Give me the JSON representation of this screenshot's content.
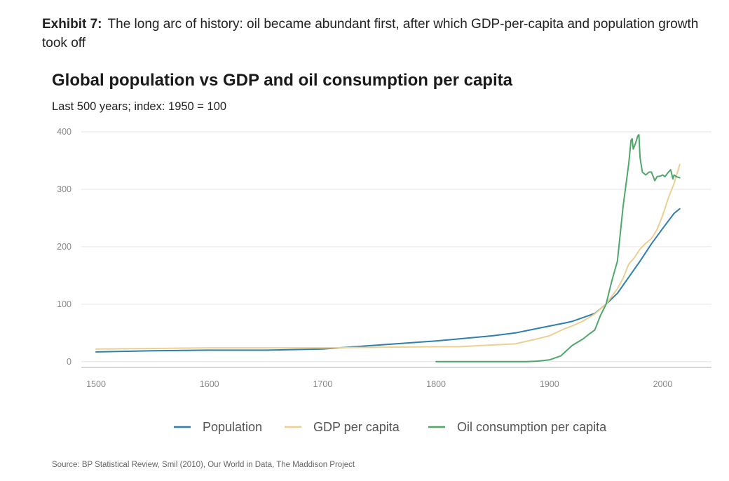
{
  "exhibit": {
    "label": "Exhibit 7:",
    "caption": "The long arc of history: oil became abundant first, after which GDP-per-capita and population growth took off"
  },
  "source": "Source: BP Statistical Review, Smil (2010), Our World in Data, The Maddison Project",
  "colors": {
    "population": "#2e7fae",
    "gdp": "#ecd092",
    "oil": "#4fa86a",
    "grid": "#e6e6e6",
    "axis": "#cccccc"
  },
  "chart_data": {
    "type": "line",
    "title": "Global population vs GDP and oil consumption per capita",
    "subtitle": "Last 500 years; index: 1950 = 100",
    "xlabel": "",
    "ylabel": "",
    "xlim": [
      1487,
      2043
    ],
    "ylim": [
      -10,
      400
    ],
    "x_ticks": [
      "1500",
      "1600",
      "1700",
      "1800",
      "1900",
      "2000"
    ],
    "y_ticks": [
      "0",
      "100",
      "200",
      "300",
      "400"
    ],
    "grid": true,
    "legend_position": "bottom",
    "series": [
      {
        "name": "Population",
        "color_key": "population",
        "points": [
          [
            1500,
            17
          ],
          [
            1550,
            19
          ],
          [
            1600,
            20
          ],
          [
            1650,
            20
          ],
          [
            1700,
            22
          ],
          [
            1750,
            29
          ],
          [
            1800,
            36
          ],
          [
            1850,
            45
          ],
          [
            1870,
            50
          ],
          [
            1900,
            62
          ],
          [
            1913,
            67
          ],
          [
            1920,
            70
          ],
          [
            1930,
            77
          ],
          [
            1940,
            84
          ],
          [
            1950,
            100
          ],
          [
            1960,
            119
          ],
          [
            1970,
            147
          ],
          [
            1980,
            175
          ],
          [
            1990,
            205
          ],
          [
            2000,
            232
          ],
          [
            2010,
            258
          ],
          [
            2015,
            266
          ]
        ]
      },
      {
        "name": "GDP per capita",
        "color_key": "gdp",
        "points": [
          [
            1500,
            22
          ],
          [
            1550,
            23
          ],
          [
            1600,
            24
          ],
          [
            1650,
            24
          ],
          [
            1700,
            24
          ],
          [
            1750,
            25
          ],
          [
            1800,
            26
          ],
          [
            1820,
            26
          ],
          [
            1850,
            29
          ],
          [
            1870,
            31
          ],
          [
            1890,
            40
          ],
          [
            1900,
            45
          ],
          [
            1913,
            57
          ],
          [
            1920,
            62
          ],
          [
            1930,
            71
          ],
          [
            1940,
            83
          ],
          [
            1950,
            100
          ],
          [
            1960,
            127
          ],
          [
            1965,
            145
          ],
          [
            1970,
            170
          ],
          [
            1975,
            181
          ],
          [
            1980,
            196
          ],
          [
            1985,
            206
          ],
          [
            1990,
            214
          ],
          [
            1995,
            230
          ],
          [
            2000,
            255
          ],
          [
            2005,
            285
          ],
          [
            2010,
            310
          ],
          [
            2015,
            343
          ]
        ]
      },
      {
        "name": "Oil consumption per capita",
        "color_key": "oil",
        "points": [
          [
            1800,
            0
          ],
          [
            1850,
            0
          ],
          [
            1870,
            0
          ],
          [
            1880,
            0
          ],
          [
            1890,
            1
          ],
          [
            1900,
            3
          ],
          [
            1910,
            10
          ],
          [
            1920,
            28
          ],
          [
            1930,
            40
          ],
          [
            1935,
            48
          ],
          [
            1940,
            55
          ],
          [
            1945,
            80
          ],
          [
            1950,
            100
          ],
          [
            1955,
            140
          ],
          [
            1960,
            175
          ],
          [
            1965,
            270
          ],
          [
            1970,
            345
          ],
          [
            1972,
            385
          ],
          [
            1973,
            388
          ],
          [
            1974,
            370
          ],
          [
            1976,
            380
          ],
          [
            1978,
            393
          ],
          [
            1979,
            395
          ],
          [
            1980,
            355
          ],
          [
            1982,
            330
          ],
          [
            1985,
            325
          ],
          [
            1988,
            330
          ],
          [
            1990,
            330
          ],
          [
            1993,
            315
          ],
          [
            1995,
            322
          ],
          [
            1998,
            323
          ],
          [
            2000,
            325
          ],
          [
            2002,
            322
          ],
          [
            2005,
            330
          ],
          [
            2007,
            334
          ],
          [
            2009,
            318
          ],
          [
            2010,
            325
          ],
          [
            2012,
            322
          ],
          [
            2015,
            320
          ]
        ]
      }
    ]
  }
}
